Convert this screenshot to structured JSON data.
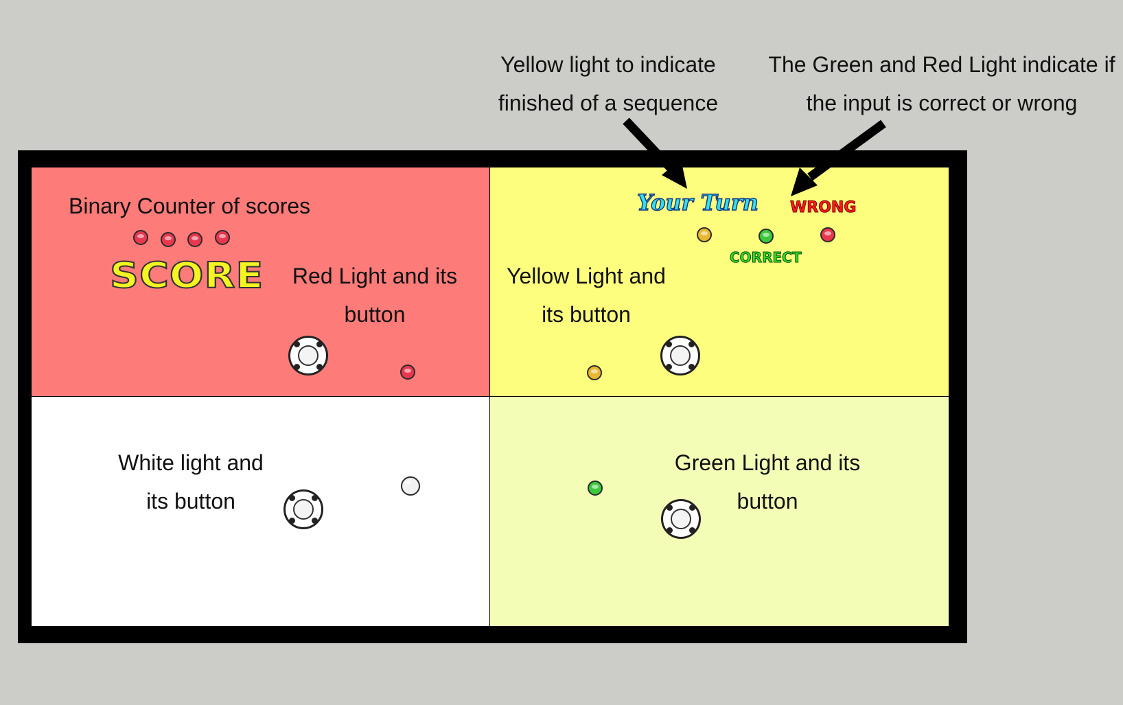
{
  "notes": {
    "yellow_indicator": [
      "Yellow light to indicate",
      "finished of a sequence"
    ],
    "green_red_indicator": [
      "The Green and Red Light indicate if",
      "the input is correct or wrong"
    ]
  },
  "quadrants": {
    "red": {
      "color": "#fd7b79",
      "title": "Binary Counter of scores",
      "score_label": "SCORE",
      "label": [
        "Red Light and its",
        "button"
      ],
      "counter_led_count": 4
    },
    "yellow": {
      "color": "#fefe7e",
      "your_turn": "Your Turn",
      "wrong": "WRONG",
      "correct": "CORRECT",
      "label": [
        "Yellow Light and",
        "its button"
      ]
    },
    "white": {
      "color": "#ffffff",
      "label": [
        "White light and",
        "its button"
      ]
    },
    "green": {
      "color": "#f3fdb6",
      "label": [
        "Green Light and its",
        "button"
      ]
    }
  },
  "led_colors": {
    "red": "#e8384f",
    "yellow": "#e8b830",
    "green": "#3cc83c",
    "white": "#f2f2f2"
  },
  "border_color": "#000000"
}
